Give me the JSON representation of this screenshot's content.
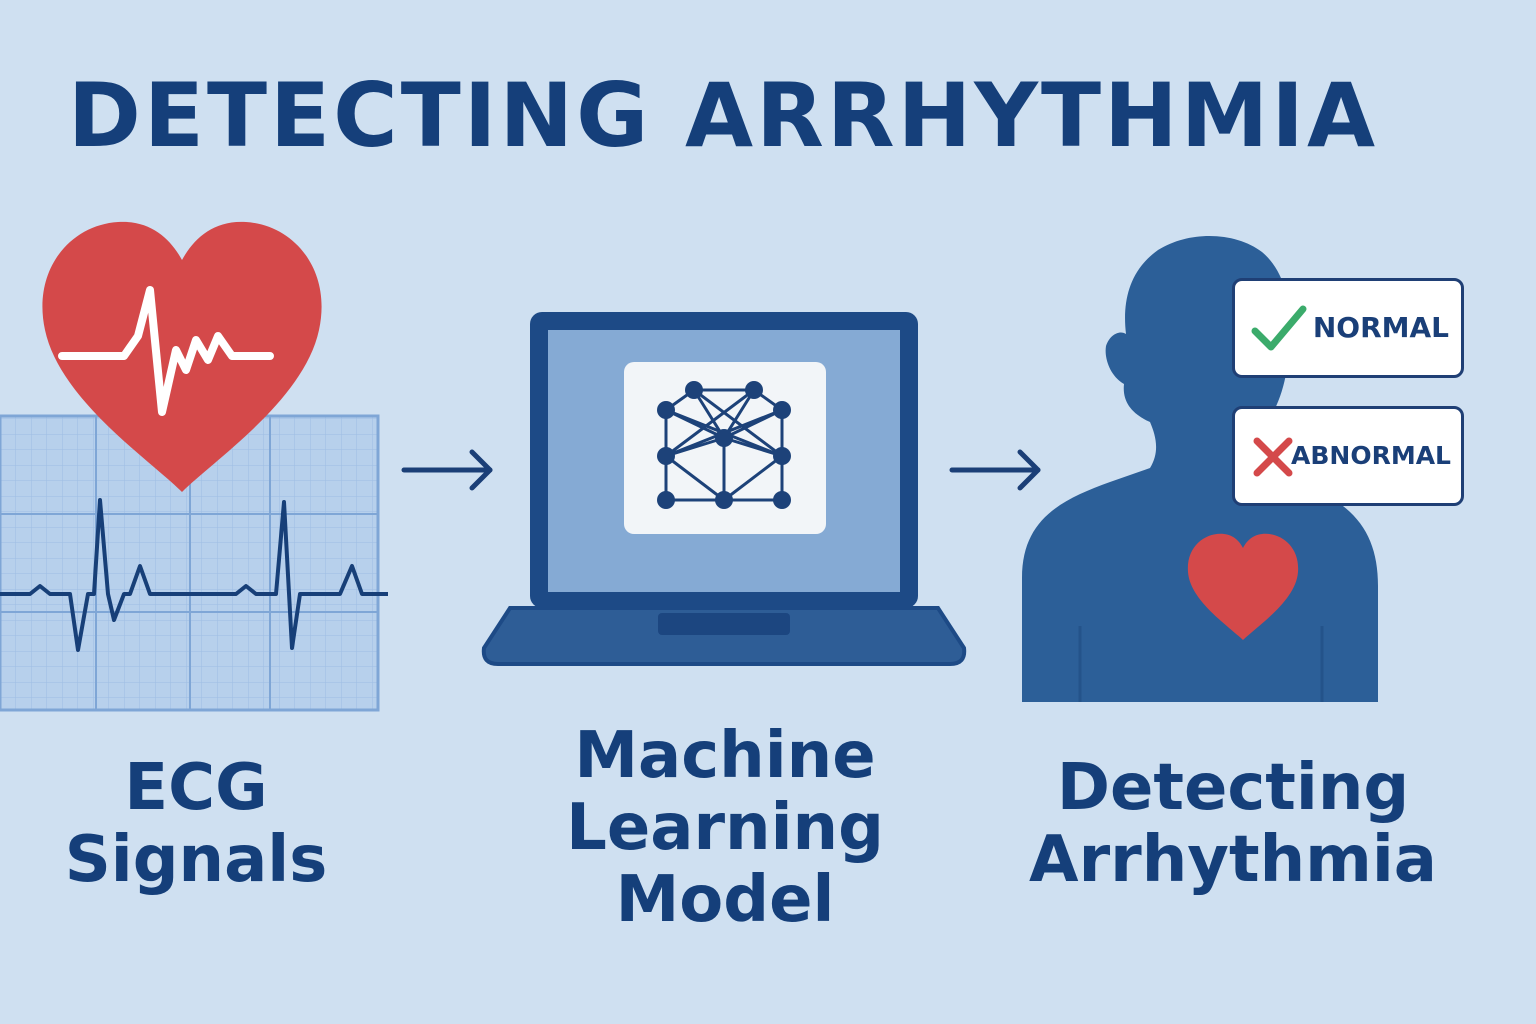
{
  "title": "DETECTING ARRHYTHMIA",
  "steps": [
    {
      "line1": "ECG",
      "line2": "Signals"
    },
    {
      "line1": "Machine",
      "line2": "Learning",
      "line3": "Model"
    },
    {
      "line1": "Detecting",
      "line2": "Arrhythmia"
    }
  ],
  "results": {
    "normal": "NORMAL",
    "abnormal": "ABNORMAL"
  },
  "icons": [
    "heart-icon",
    "ecg-grid-icon",
    "arrow-right-icon",
    "laptop-icon",
    "neural-network-icon",
    "person-silhouette-icon",
    "check-icon",
    "cross-icon"
  ],
  "colors": {
    "background": "#cfe0f1",
    "navy": "#153f7a",
    "blue": "#2d6299",
    "heart_red": "#d4494a",
    "check_green": "#3bab6b",
    "grid_blue": "#a9c6e8"
  }
}
